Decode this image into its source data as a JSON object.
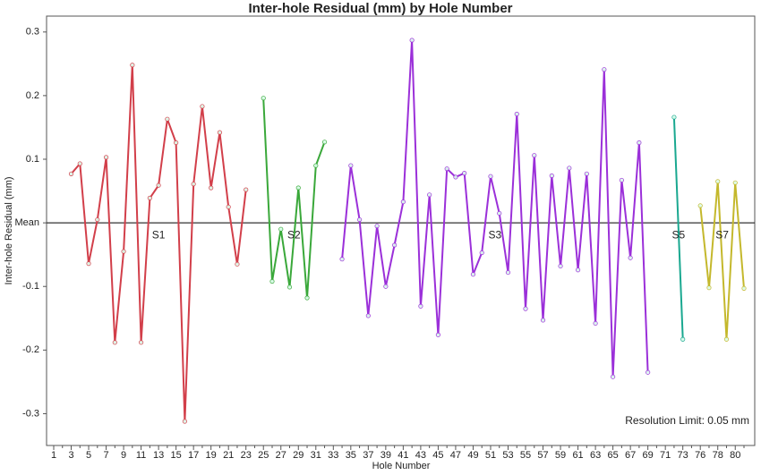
{
  "chart_data": {
    "type": "line",
    "title": "Inter-hole Residual (mm) by Hole Number",
    "x_label": "Hole Number",
    "y_label": "Inter-hole Residual (mm)",
    "annotation": "Resolution Limit: 0.05 mm",
    "categories": [
      "1",
      null,
      "3",
      null,
      "5",
      null,
      "7",
      null,
      "9",
      null,
      "11",
      null,
      "13",
      null,
      "15",
      null,
      "17",
      null,
      "19",
      null,
      "21",
      null,
      "23",
      null,
      "25",
      null,
      "27",
      null,
      "29",
      null,
      "31",
      null,
      "33",
      null,
      "35",
      null,
      "37",
      null,
      "39",
      null,
      "41",
      null,
      "43",
      null,
      "45",
      null,
      "47",
      null,
      "49",
      null,
      "51",
      null,
      "53",
      null,
      "55",
      null,
      "57",
      null,
      "59",
      null,
      "61",
      null,
      "63",
      null,
      "65",
      null,
      "67",
      null,
      "69",
      null,
      "71",
      null,
      "73",
      null,
      "76",
      null,
      "78",
      null,
      "80",
      null
    ],
    "series": [
      {
        "name": "S1",
        "color": "#d23f4a",
        "values": [
          null,
          null,
          0.077,
          0.093,
          -0.064,
          0.005,
          0.103,
          -0.188,
          -0.045,
          0.248,
          -0.188,
          0.039,
          0.059,
          0.163,
          0.126,
          -0.312,
          0.061,
          0.183,
          0.055,
          0.142,
          0.025,
          -0.065,
          0.052,
          null,
          null,
          null,
          null,
          null,
          null,
          null,
          null,
          null,
          null,
          null,
          null,
          null,
          null,
          null,
          null,
          null,
          null,
          null,
          null,
          null,
          null,
          null,
          null,
          null,
          null,
          null,
          null,
          null,
          null,
          null,
          null,
          null,
          null,
          null,
          null,
          null,
          null,
          null,
          null,
          null,
          null,
          null,
          null,
          null,
          null,
          null,
          null,
          null,
          null,
          null,
          null,
          null,
          null,
          null,
          null,
          null
        ]
      },
      {
        "name": "S2",
        "color": "#3aa83a",
        "values": [
          null,
          null,
          null,
          null,
          null,
          null,
          null,
          null,
          null,
          null,
          null,
          null,
          null,
          null,
          null,
          null,
          null,
          null,
          null,
          null,
          null,
          null,
          null,
          null,
          0.196,
          -0.092,
          -0.01,
          -0.101,
          0.055,
          -0.118,
          0.09,
          0.127,
          null,
          null,
          null,
          null,
          null,
          null,
          null,
          null,
          null,
          null,
          null,
          null,
          null,
          null,
          null,
          null,
          null,
          null,
          null,
          null,
          null,
          null,
          null,
          null,
          null,
          null,
          null,
          null,
          null,
          null,
          null,
          null,
          null,
          null,
          null,
          null,
          null,
          null,
          null,
          null,
          null,
          null,
          null,
          null,
          null,
          null,
          null,
          null
        ]
      },
      {
        "name": "S3",
        "color": "#9b30d9",
        "values": [
          null,
          null,
          null,
          null,
          null,
          null,
          null,
          null,
          null,
          null,
          null,
          null,
          null,
          null,
          null,
          null,
          null,
          null,
          null,
          null,
          null,
          null,
          null,
          null,
          null,
          null,
          null,
          null,
          null,
          null,
          null,
          null,
          null,
          -0.057,
          0.09,
          0.005,
          -0.146,
          -0.005,
          -0.1,
          -0.035,
          0.033,
          0.287,
          -0.131,
          0.044,
          -0.176,
          0.085,
          0.072,
          0.078,
          -0.081,
          -0.047,
          0.073,
          0.015,
          -0.078,
          0.171,
          -0.135,
          0.106,
          -0.153,
          0.074,
          -0.068,
          0.086,
          -0.074,
          0.077,
          -0.158,
          0.241,
          -0.242,
          0.067,
          -0.055,
          0.126,
          -0.235,
          null,
          null,
          null,
          null,
          null,
          null,
          null,
          null,
          null,
          null,
          null
        ]
      },
      {
        "name": "S5",
        "color": "#1aa890",
        "values": [
          null,
          null,
          null,
          null,
          null,
          null,
          null,
          null,
          null,
          null,
          null,
          null,
          null,
          null,
          null,
          null,
          null,
          null,
          null,
          null,
          null,
          null,
          null,
          null,
          null,
          null,
          null,
          null,
          null,
          null,
          null,
          null,
          null,
          null,
          null,
          null,
          null,
          null,
          null,
          null,
          null,
          null,
          null,
          null,
          null,
          null,
          null,
          null,
          null,
          null,
          null,
          null,
          null,
          null,
          null,
          null,
          null,
          null,
          null,
          null,
          null,
          null,
          null,
          null,
          null,
          null,
          null,
          null,
          null,
          null,
          null,
          0.166,
          -0.183,
          null,
          null,
          null,
          null,
          null,
          null,
          null
        ]
      },
      {
        "name": "S7",
        "color": "#c4b82c",
        "values": [
          null,
          null,
          null,
          null,
          null,
          null,
          null,
          null,
          null,
          null,
          null,
          null,
          null,
          null,
          null,
          null,
          null,
          null,
          null,
          null,
          null,
          null,
          null,
          null,
          null,
          null,
          null,
          null,
          null,
          null,
          null,
          null,
          null,
          null,
          null,
          null,
          null,
          null,
          null,
          null,
          null,
          null,
          null,
          null,
          null,
          null,
          null,
          null,
          null,
          null,
          null,
          null,
          null,
          null,
          null,
          null,
          null,
          null,
          null,
          null,
          null,
          null,
          null,
          null,
          null,
          null,
          null,
          null,
          null,
          null,
          null,
          null,
          null,
          null,
          0.027,
          -0.102,
          0.065,
          -0.183,
          0.063,
          -0.103
        ]
      }
    ],
    "ylim": [
      -0.35,
      0.325
    ],
    "yticks": [
      -0.3,
      -0.2,
      -0.1,
      {
        "value": 0,
        "label": "Mean"
      },
      0.1,
      0.2,
      0.3
    ],
    "hline": 0
  }
}
